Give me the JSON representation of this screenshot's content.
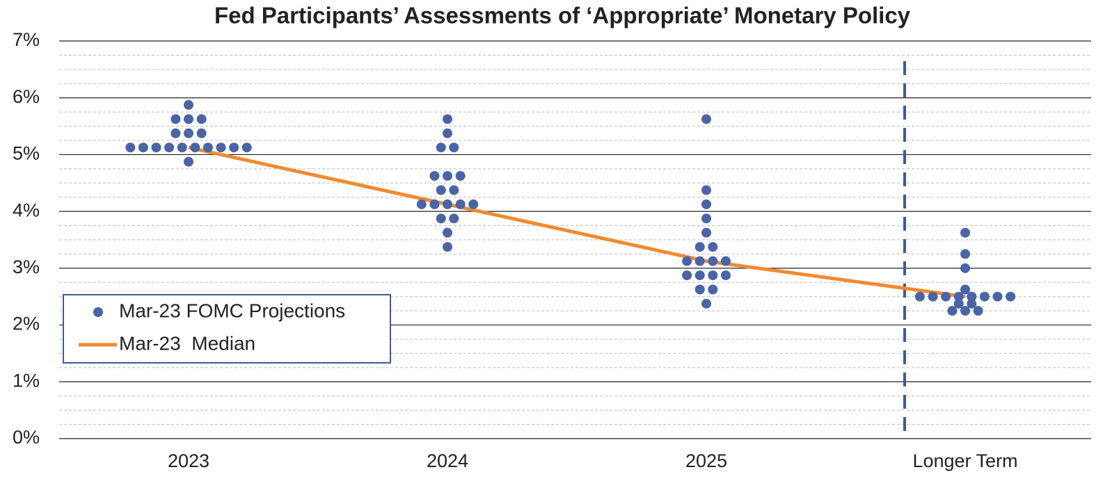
{
  "chart_data": {
    "type": "dotplot",
    "title": "Fed Participants’ Assessments of ‘Appropriate’ Monetary Policy",
    "categories": [
      "2023",
      "2024",
      "2025",
      "Longer Term"
    ],
    "series": [
      {
        "name": "Mar-23 FOMC Projections",
        "color": "#4a64a8",
        "values": [
          [
            5.125,
            5.125,
            5.125,
            5.125,
            5.125,
            5.125,
            5.125,
            5.125,
            5.125,
            5.125,
            5.375,
            5.375,
            5.375,
            5.625,
            5.625,
            5.625,
            5.875,
            4.875
          ],
          [
            3.375,
            3.625,
            3.875,
            3.875,
            4.125,
            4.125,
            4.125,
            4.125,
            4.125,
            4.375,
            4.375,
            4.625,
            4.625,
            4.625,
            5.125,
            5.125,
            5.375,
            5.625
          ],
          [
            2.375,
            2.625,
            2.625,
            2.875,
            2.875,
            2.875,
            2.875,
            3.125,
            3.125,
            3.125,
            3.125,
            3.375,
            3.375,
            3.625,
            3.875,
            4.125,
            4.375,
            5.625
          ],
          [
            2.25,
            2.25,
            2.25,
            2.375,
            2.375,
            2.5,
            2.5,
            2.5,
            2.5,
            2.5,
            2.5,
            2.5,
            2.5,
            2.625,
            3.0,
            3.25,
            3.625
          ]
        ]
      },
      {
        "name": "Mar-23  Median",
        "color": "#f28a2e",
        "values": [
          5.125,
          4.125,
          3.125,
          2.5
        ]
      }
    ],
    "ylim": [
      0,
      7
    ],
    "yticks": [
      {
        "value": 0,
        "label": "0%"
      },
      {
        "value": 1,
        "label": "1%"
      },
      {
        "value": 2,
        "label": "2%"
      },
      {
        "value": 3,
        "label": "3%"
      },
      {
        "value": 4,
        "label": "4%"
      },
      {
        "value": 5,
        "label": "5%"
      },
      {
        "value": 6,
        "label": "6%"
      },
      {
        "value": 7,
        "label": "7%"
      }
    ],
    "grid": true,
    "minor_grid": 0.25,
    "legend": "lower left"
  }
}
